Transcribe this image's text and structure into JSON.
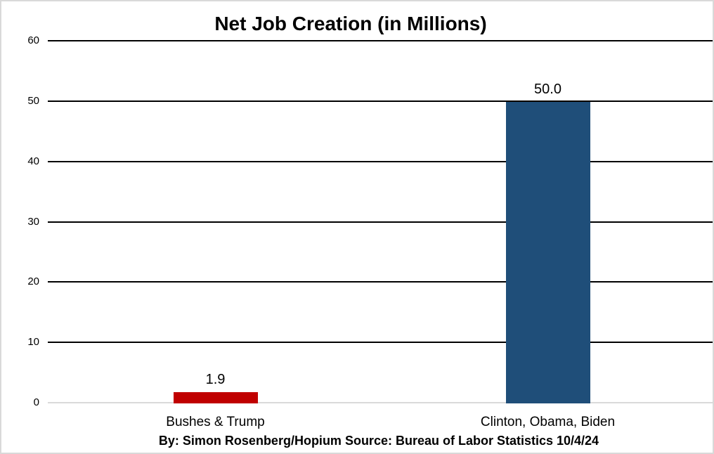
{
  "chart_data": {
    "type": "bar",
    "title": "Net Job Creation (in Millions)",
    "categories": [
      "Bushes & Trump",
      "Clinton, Obama, Biden"
    ],
    "values": [
      1.9,
      50.0
    ],
    "value_labels": [
      "1.9",
      "50.0"
    ],
    "bar_colors": [
      "#C00000",
      "#1F4E79"
    ],
    "ylim": [
      0,
      60
    ],
    "yticks": [
      0,
      10,
      20,
      30,
      40,
      50,
      60
    ],
    "grid": true,
    "gridline_color": "#000000",
    "baseline_color": "#D9D9D9",
    "legend": "none",
    "xlabel": "",
    "ylabel": "",
    "footer": "By: Simon Rosenberg/Hopium Source: Bureau of Labor Statistics 10/4/24"
  }
}
